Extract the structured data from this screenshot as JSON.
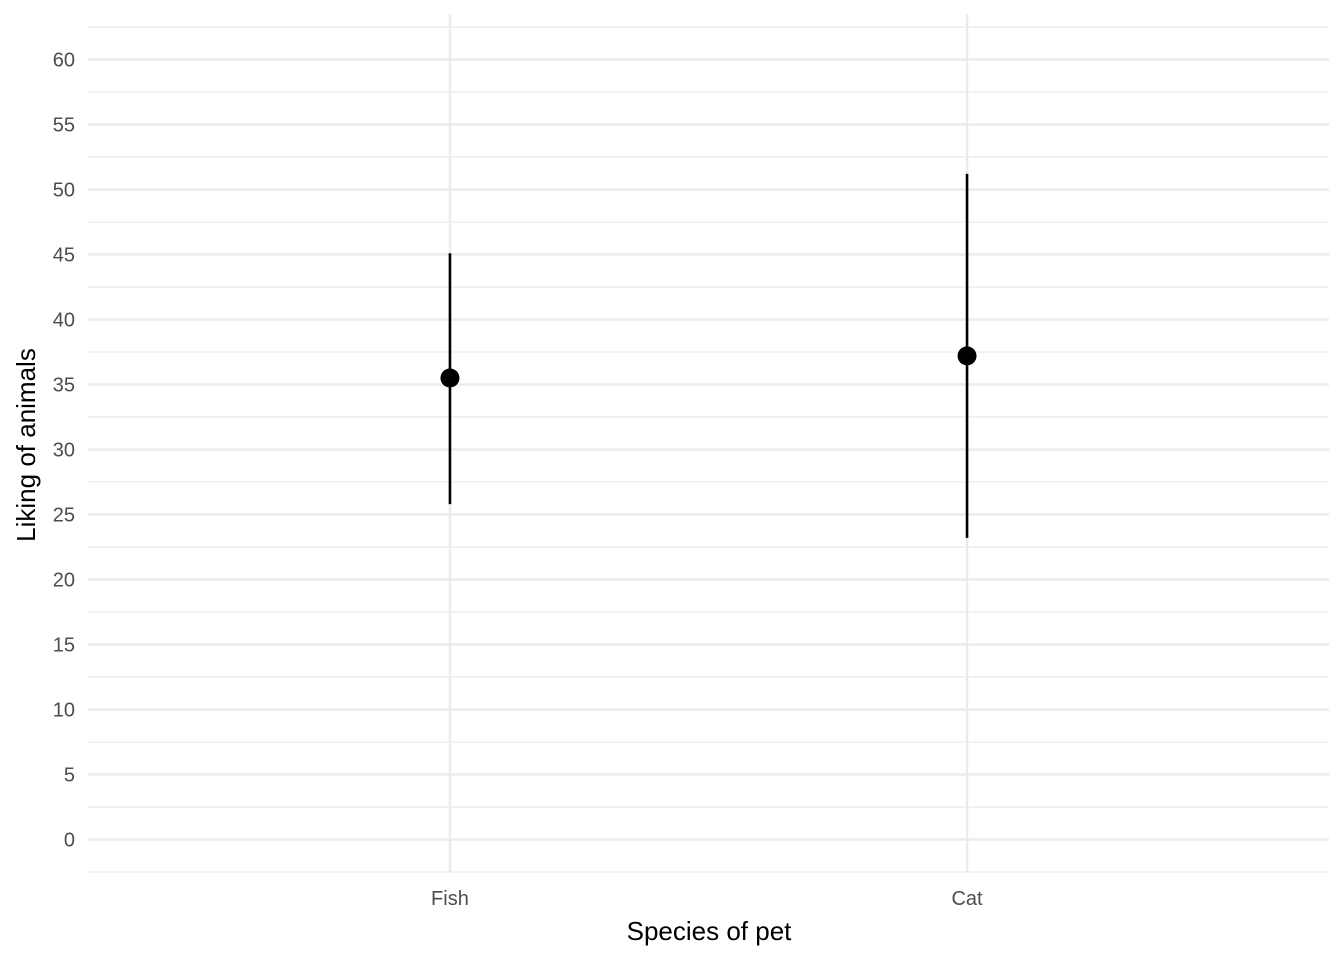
{
  "chart_data": {
    "type": "scatter",
    "title": "",
    "xlabel": "Species of pet",
    "ylabel": "Liking of animals",
    "categories": [
      "Fish",
      "Cat"
    ],
    "series": [
      {
        "values": [
          35.5,
          37.2
        ],
        "ci_lower": [
          25.8,
          23.2
        ],
        "ci_upper": [
          45.1,
          51.2
        ]
      }
    ],
    "ylim": [
      -2.5,
      63.5
    ],
    "yticks": [
      0,
      5,
      10,
      15,
      20,
      25,
      30,
      35,
      40,
      45,
      50,
      55,
      60
    ],
    "grid": true,
    "legend": "none",
    "colors": {
      "point": "#000000",
      "errorbar": "#000000",
      "grid": "#ebebeb"
    }
  }
}
